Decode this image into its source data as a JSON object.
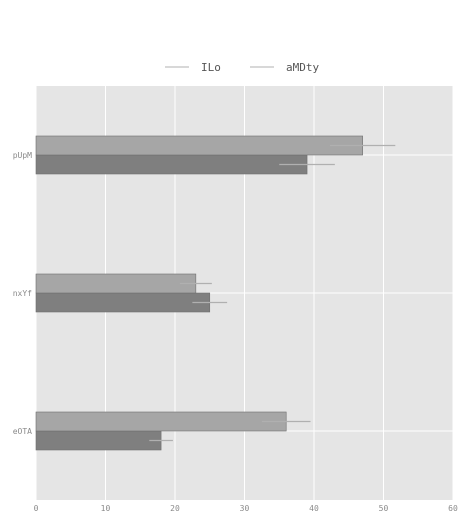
{
  "chart_data": {
    "type": "bar",
    "orientation": "horizontal",
    "categories": [
      "eOTA",
      "nxYf",
      "pUpM"
    ],
    "series": [
      {
        "name": "aMDty",
        "values": [
          18,
          25,
          39
        ],
        "errors": [
          1.7,
          2.5,
          4
        ],
        "color": "#7f7f7f"
      },
      {
        "name": "ILo",
        "values": [
          36,
          23,
          47
        ],
        "errors": [
          3.5,
          2.3,
          4.7
        ],
        "color": "#a6a6a6"
      }
    ],
    "legend_order": [
      "ILo",
      "aMDty"
    ],
    "xlim": [
      0,
      60
    ],
    "xticks": [
      0,
      10,
      20,
      30,
      40,
      50,
      60
    ],
    "title": "",
    "xlabel": "",
    "ylabel": "",
    "grid": true,
    "legend_position": "top-center",
    "colors": {
      "plot_background": "#e5e5e5",
      "grid": "#ffffff",
      "bar_edge": "#6e6e6e",
      "error_bar": "#b0b0b0",
      "legend_line": "#cccccc"
    }
  }
}
